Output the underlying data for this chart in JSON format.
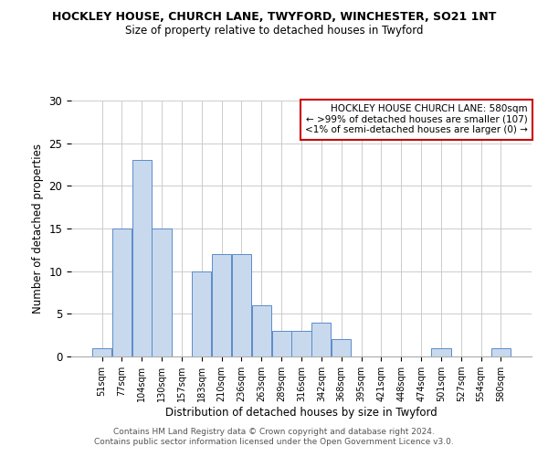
{
  "title": "HOCKLEY HOUSE, CHURCH LANE, TWYFORD, WINCHESTER, SO21 1NT",
  "subtitle": "Size of property relative to detached houses in Twyford",
  "xlabel": "Distribution of detached houses by size in Twyford",
  "ylabel": "Number of detached properties",
  "bar_color": "#c8d9ee",
  "bar_edge_color": "#5b8cc8",
  "categories": [
    "51sqm",
    "77sqm",
    "104sqm",
    "130sqm",
    "157sqm",
    "183sqm",
    "210sqm",
    "236sqm",
    "263sqm",
    "289sqm",
    "316sqm",
    "342sqm",
    "368sqm",
    "395sqm",
    "421sqm",
    "448sqm",
    "474sqm",
    "501sqm",
    "527sqm",
    "554sqm",
    "580sqm"
  ],
  "values": [
    1,
    15,
    23,
    15,
    0,
    10,
    12,
    12,
    6,
    3,
    3,
    4,
    2,
    0,
    0,
    0,
    0,
    1,
    0,
    0,
    1
  ],
  "ylim": [
    0,
    30
  ],
  "yticks": [
    0,
    5,
    10,
    15,
    20,
    25,
    30
  ],
  "annotation_box_text": "HOCKLEY HOUSE CHURCH LANE: 580sqm\n← >99% of detached houses are smaller (107)\n<1% of semi-detached houses are larger (0) →",
  "annotation_box_color": "#cc0000",
  "footer_line1": "Contains HM Land Registry data © Crown copyright and database right 2024.",
  "footer_line2": "Contains public sector information licensed under the Open Government Licence v3.0.",
  "bg_color": "#ffffff",
  "grid_color": "#cccccc"
}
